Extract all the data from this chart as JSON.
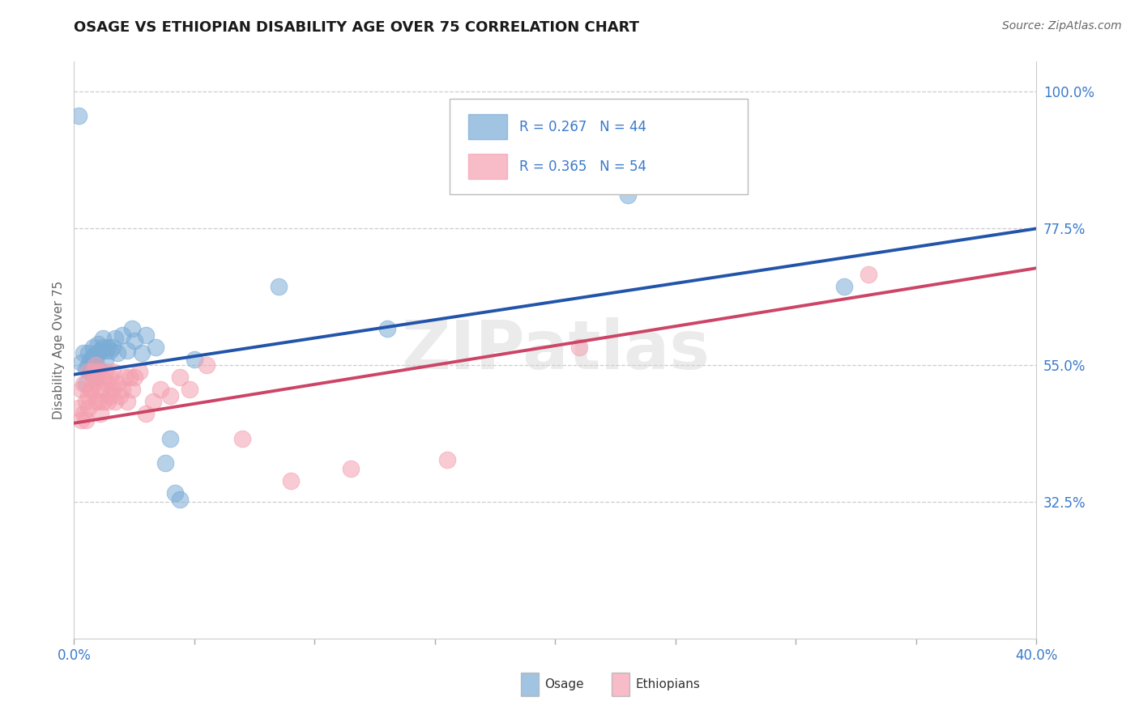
{
  "title": "OSAGE VS ETHIOPIAN DISABILITY AGE OVER 75 CORRELATION CHART",
  "source": "Source: ZipAtlas.com",
  "ylabel": "Disability Age Over 75",
  "osage_R": 0.267,
  "osage_N": 44,
  "ethiopian_R": 0.365,
  "ethiopian_N": 54,
  "osage_color": "#7aacd6",
  "ethiopian_color": "#f4a0b0",
  "osage_line_color": "#2255aa",
  "ethiopian_line_color": "#cc4466",
  "watermark": "ZIPatlas",
  "right_ytick_vals": [
    0.325,
    0.55,
    0.775,
    1.0
  ],
  "right_ytick_labels": [
    "32.5%",
    "55.0%",
    "77.5%",
    "100.0%"
  ],
  "background_color": "#ffffff",
  "grid_color": "#cccccc",
  "osage_x": [
    0.002,
    0.003,
    0.004,
    0.005,
    0.005,
    0.006,
    0.006,
    0.007,
    0.007,
    0.007,
    0.008,
    0.008,
    0.009,
    0.009,
    0.009,
    0.01,
    0.01,
    0.01,
    0.011,
    0.012,
    0.012,
    0.013,
    0.013,
    0.014,
    0.015,
    0.016,
    0.017,
    0.018,
    0.02,
    0.022,
    0.024,
    0.025,
    0.028,
    0.03,
    0.034,
    0.038,
    0.04,
    0.042,
    0.044,
    0.05,
    0.085,
    0.13,
    0.23,
    0.32
  ],
  "osage_y": [
    0.96,
    0.555,
    0.57,
    0.545,
    0.52,
    0.55,
    0.57,
    0.545,
    0.56,
    0.54,
    0.565,
    0.58,
    0.55,
    0.56,
    0.53,
    0.545,
    0.57,
    0.585,
    0.575,
    0.58,
    0.595,
    0.56,
    0.575,
    0.58,
    0.575,
    0.58,
    0.595,
    0.57,
    0.6,
    0.575,
    0.61,
    0.59,
    0.57,
    0.6,
    0.58,
    0.39,
    0.43,
    0.34,
    0.33,
    0.56,
    0.68,
    0.61,
    0.83,
    0.68
  ],
  "ethiopian_x": [
    0.002,
    0.003,
    0.003,
    0.004,
    0.004,
    0.005,
    0.005,
    0.006,
    0.006,
    0.006,
    0.007,
    0.007,
    0.008,
    0.008,
    0.009,
    0.009,
    0.009,
    0.01,
    0.01,
    0.011,
    0.011,
    0.012,
    0.012,
    0.013,
    0.013,
    0.014,
    0.014,
    0.015,
    0.015,
    0.016,
    0.016,
    0.017,
    0.018,
    0.019,
    0.02,
    0.021,
    0.022,
    0.023,
    0.024,
    0.025,
    0.027,
    0.03,
    0.033,
    0.036,
    0.04,
    0.044,
    0.048,
    0.055,
    0.07,
    0.09,
    0.115,
    0.155,
    0.21,
    0.33
  ],
  "ethiopian_y": [
    0.48,
    0.46,
    0.51,
    0.47,
    0.52,
    0.46,
    0.49,
    0.5,
    0.54,
    0.48,
    0.51,
    0.51,
    0.54,
    0.52,
    0.55,
    0.53,
    0.49,
    0.49,
    0.54,
    0.47,
    0.51,
    0.49,
    0.53,
    0.51,
    0.54,
    0.49,
    0.52,
    0.5,
    0.53,
    0.51,
    0.54,
    0.49,
    0.52,
    0.5,
    0.51,
    0.53,
    0.49,
    0.53,
    0.51,
    0.53,
    0.54,
    0.47,
    0.49,
    0.51,
    0.5,
    0.53,
    0.51,
    0.55,
    0.43,
    0.36,
    0.38,
    0.395,
    0.58,
    0.7
  ],
  "xlim": [
    0.0,
    0.4
  ],
  "ylim": [
    0.1,
    1.05
  ],
  "xtick_positions": [
    0.0,
    0.05,
    0.1,
    0.15,
    0.2,
    0.25,
    0.3,
    0.35,
    0.4
  ],
  "osage_line_x": [
    0.0,
    0.4
  ],
  "osage_line_y": [
    0.535,
    0.775
  ],
  "ethiopian_line_x": [
    0.0,
    0.4
  ],
  "ethiopian_line_y": [
    0.455,
    0.71
  ]
}
